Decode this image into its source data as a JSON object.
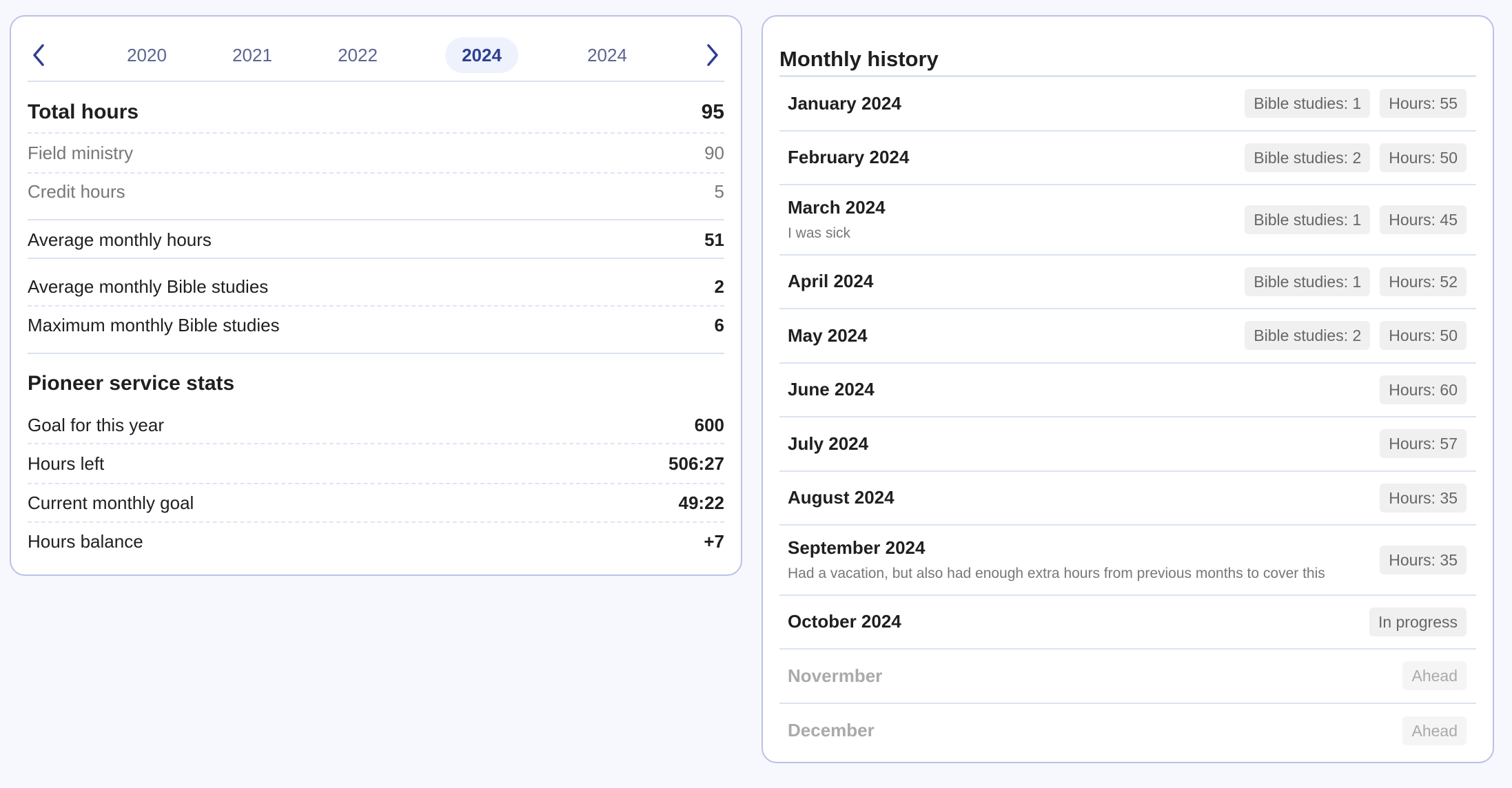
{
  "year_nav": {
    "prev_icon": "chevron-left-icon",
    "next_icon": "chevron-right-icon",
    "years": [
      "2020",
      "2021",
      "2022",
      "2024",
      "2024"
    ],
    "active_index": 3,
    "accent_color": "#2f3f8f"
  },
  "summary": {
    "total_hours": {
      "label": "Total hours",
      "value": "95"
    },
    "field_ministry": {
      "label": "Field ministry",
      "value": "90"
    },
    "credit_hours": {
      "label": "Credit hours",
      "value": "5"
    },
    "avg_monthly_hours": {
      "label": "Average monthly hours",
      "value": "51"
    },
    "avg_monthly_bible_studies": {
      "label": "Average monthly Bible studies",
      "value": "2"
    },
    "max_monthly_bible_studies": {
      "label": "Maximum monthly Bible studies",
      "value": "6"
    }
  },
  "pioneer": {
    "title": "Pioneer service stats",
    "goal": {
      "label": "Goal for this year",
      "value": "600"
    },
    "hours_left": {
      "label": "Hours left",
      "value": "506:27"
    },
    "current_monthly_goal": {
      "label": "Current monthly goal",
      "value": "49:22"
    },
    "hours_balance": {
      "label": "Hours balance",
      "value": "+7"
    }
  },
  "history": {
    "title": "Monthly history",
    "months": [
      {
        "name": "January 2024",
        "badges": [
          "Bible studies: 1",
          "Hours: 55"
        ]
      },
      {
        "name": "February 2024",
        "badges": [
          "Bible studies: 2",
          "Hours: 50"
        ]
      },
      {
        "name": "March 2024",
        "note": "I was sick",
        "badges": [
          "Bible studies: 1",
          "Hours: 45"
        ]
      },
      {
        "name": "April 2024",
        "badges": [
          "Bible studies: 1",
          "Hours:  52"
        ]
      },
      {
        "name": "May 2024",
        "badges": [
          "Bible studies: 2",
          "Hours: 50"
        ]
      },
      {
        "name": "June 2024",
        "badges": [
          "Hours: 60"
        ]
      },
      {
        "name": "July 2024",
        "badges": [
          "Hours: 57"
        ]
      },
      {
        "name": "August 2024",
        "badges": [
          "Hours: 35"
        ]
      },
      {
        "name": "September 2024",
        "note": "Had a vacation, but also had enough extra hours from previous months to cover this",
        "badges": [
          "Hours: 35"
        ]
      },
      {
        "name": "October 2024",
        "badges": [
          "In progress"
        ]
      },
      {
        "name": "Novermber",
        "badges": [
          "Ahead"
        ],
        "state": "ahead"
      },
      {
        "name": "December",
        "badges": [
          "Ahead"
        ],
        "state": "ahead"
      }
    ]
  }
}
